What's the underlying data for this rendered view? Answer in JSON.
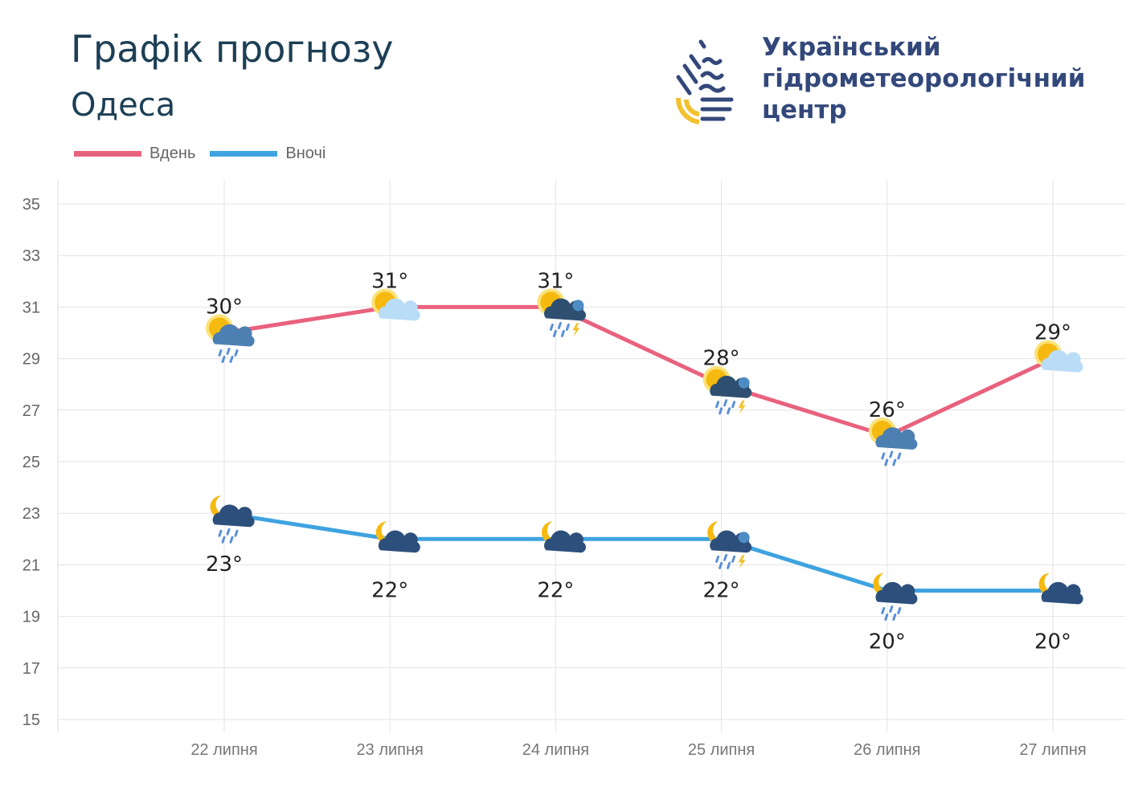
{
  "header": {
    "title": "Графік прогнозу",
    "city": "Одеса"
  },
  "logo": {
    "org_lines": [
      "Український",
      "гідрометеорологічний",
      "центр"
    ]
  },
  "colors": {
    "day": "#e8627e",
    "night": "#3ea3e0",
    "grid": "#e3e3e3"
  },
  "chart_data": {
    "type": "line",
    "categories": [
      "22 липня",
      "23 липня",
      "24 липня",
      "25 липня",
      "26 липня",
      "27 липня"
    ],
    "series": [
      {
        "name": "Вдень",
        "values": [
          30,
          31,
          31,
          28,
          26,
          29
        ],
        "labels": [
          "30°",
          "31°",
          "31°",
          "28°",
          "26°",
          "29°"
        ],
        "conditions": [
          "sun-cloud-rain",
          "sun-cloud",
          "sun-cloud-rain-thunder",
          "sun-cloud-rain-thunder",
          "sun-cloud-rain",
          "sun-cloud"
        ]
      },
      {
        "name": "Вночі",
        "values": [
          23,
          22,
          22,
          22,
          20,
          20
        ],
        "labels": [
          "23°",
          "22°",
          "22°",
          "22°",
          "20°",
          "20°"
        ],
        "conditions": [
          "moon-cloud-rain",
          "moon-cloud",
          "moon-cloud",
          "moon-cloud-rain-thunder",
          "moon-cloud-rain",
          "moon-cloud"
        ]
      }
    ],
    "ylim": [
      15,
      35
    ],
    "yticks": [
      "15",
      "17",
      "19",
      "21",
      "23",
      "25",
      "27",
      "29",
      "31",
      "33",
      "35"
    ],
    "legend": "top-left",
    "grid": true
  }
}
